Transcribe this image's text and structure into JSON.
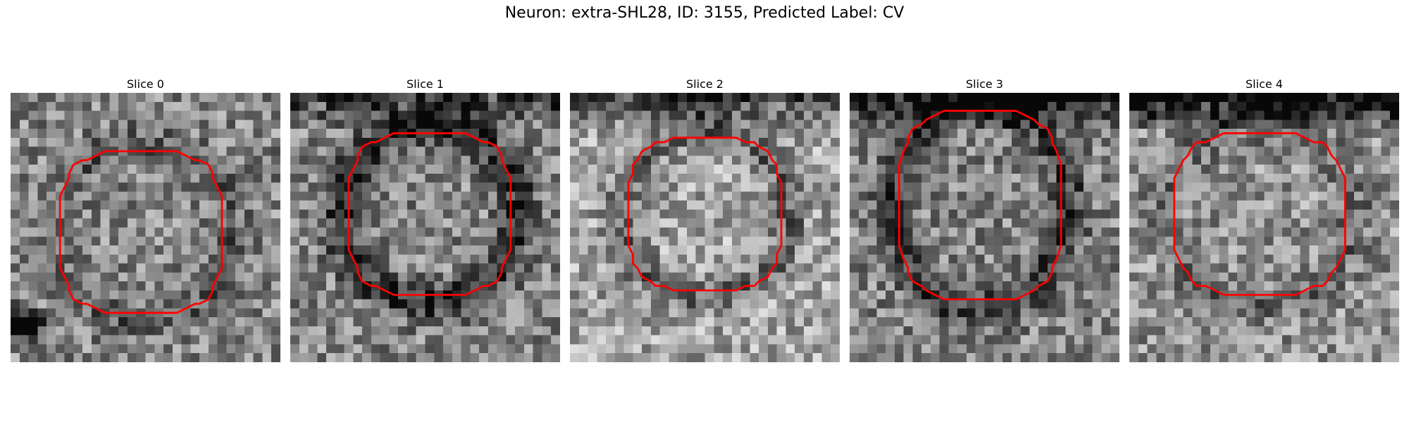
{
  "figure": {
    "title": "Neuron: extra-SHL28, ID: 3155, Predicted Label: CV",
    "contour_color": "#ff0000",
    "colormap": "gray",
    "grid_cells": 30
  },
  "panels": [
    {
      "label": "Slice 0",
      "seed": 11,
      "mask_center": [
        14.5,
        15.5
      ],
      "mask_radius": [
        9.0,
        9.0
      ],
      "ring_dark": 0.15,
      "top_dark": 0.0,
      "brightness": 0.0,
      "blotch": [
        1.0,
        25.5,
        3.0,
        -0.7
      ]
    },
    {
      "label": "Slice 1",
      "seed": 23,
      "mask_center": [
        15.5,
        13.5
      ],
      "mask_radius": [
        9.0,
        9.0
      ],
      "ring_dark": 0.35,
      "top_dark": 0.3,
      "brightness": 0.0,
      "blotch": null
    },
    {
      "label": "Slice 2",
      "seed": 37,
      "mask_center": [
        15.0,
        13.5
      ],
      "mask_radius": [
        8.5,
        8.5
      ],
      "ring_dark": 0.25,
      "top_dark": 0.4,
      "brightness": 0.12,
      "blotch": null
    },
    {
      "label": "Slice 3",
      "seed": 53,
      "mask_center": [
        14.5,
        12.5
      ],
      "mask_radius": [
        9.0,
        10.5
      ],
      "ring_dark": 0.3,
      "top_dark": 0.5,
      "brightness": 0.0,
      "blotch": null
    },
    {
      "label": "Slice 4",
      "seed": 71,
      "mask_center": [
        14.5,
        13.5
      ],
      "mask_radius": [
        9.5,
        9.0
      ],
      "ring_dark": 0.15,
      "top_dark": 0.75,
      "brightness": 0.05,
      "blotch": null
    }
  ]
}
